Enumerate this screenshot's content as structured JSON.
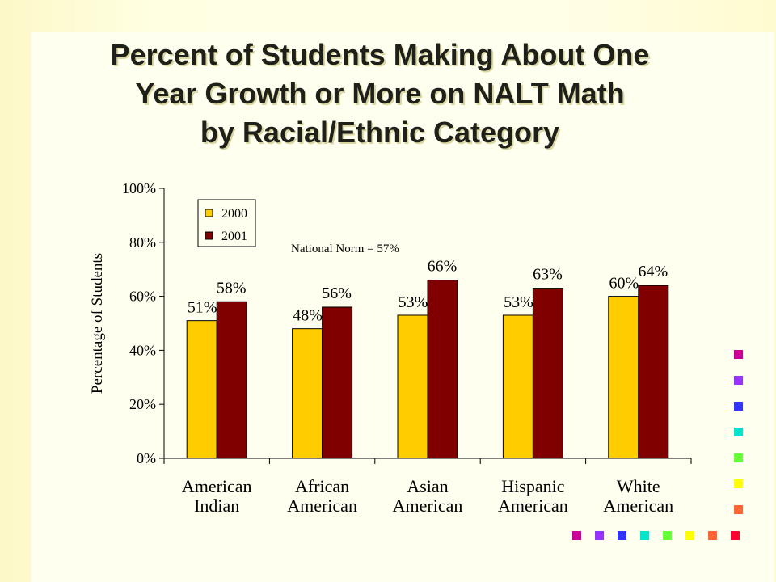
{
  "title_lines": [
    "Percent of Students Making About One",
    "Year Growth or More on NALT Math",
    "by Racial/Ethnic Category"
  ],
  "chart_data": {
    "type": "bar",
    "ylabel": "Percentage of Students",
    "ylim": [
      0,
      100
    ],
    "yticks": [
      "0%",
      "20%",
      "40%",
      "60%",
      "80%",
      "100%"
    ],
    "categories": [
      [
        "American",
        "Indian"
      ],
      [
        "African",
        "American"
      ],
      [
        "Asian",
        "American"
      ],
      [
        "Hispanic",
        "American"
      ],
      [
        "White",
        "American"
      ]
    ],
    "series": [
      {
        "name": "2000",
        "color": "#ffcc00",
        "values": [
          51,
          48,
          53,
          53,
          60
        ],
        "labels": [
          "51%",
          "48%",
          "53%",
          "53%",
          "60%"
        ]
      },
      {
        "name": "2001",
        "color": "#800000",
        "values": [
          58,
          56,
          66,
          63,
          64
        ],
        "labels": [
          "58%",
          "56%",
          "66%",
          "63%",
          "64%"
        ]
      }
    ],
    "annotation": "National Norm = 57%",
    "legend_position": "top-left",
    "grid": false
  },
  "decoration_colors": [
    "#cc0099",
    "#9933ff",
    "#3333ff",
    "#00e5cc",
    "#66ff33",
    "#ffff00",
    "#ff6633",
    "#ff0033"
  ]
}
